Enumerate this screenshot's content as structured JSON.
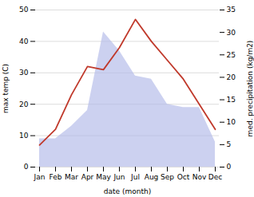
{
  "chart_data": {
    "type": "line",
    "xlabel": "date (month)",
    "ylabel": "max temp (C)",
    "y2label": "med. precipitation (kg/m2)",
    "categories": [
      "Jan",
      "Feb",
      "Mar",
      "Apr",
      "May",
      "Jun",
      "Jul",
      "Aug",
      "Sep",
      "Oct",
      "Nov",
      "Dec"
    ],
    "series": [
      {
        "type": "area",
        "color": "#b0b8e8",
        "values": [
          9,
          9,
          13,
          18,
          43,
          37,
          29,
          28,
          20,
          19,
          19,
          8
        ]
      },
      {
        "type": "line",
        "color": "#c0392b",
        "values": [
          7,
          12,
          23,
          32,
          31,
          38,
          47,
          40,
          34,
          28,
          20,
          12
        ]
      }
    ],
    "ylim": [
      0,
      50
    ],
    "yticks": [
      0,
      10,
      20,
      30,
      40,
      50
    ],
    "y2lim": [
      0,
      35
    ],
    "y2ticks": [
      0,
      5,
      10,
      15,
      20,
      25,
      30,
      35
    ],
    "grid": true
  }
}
